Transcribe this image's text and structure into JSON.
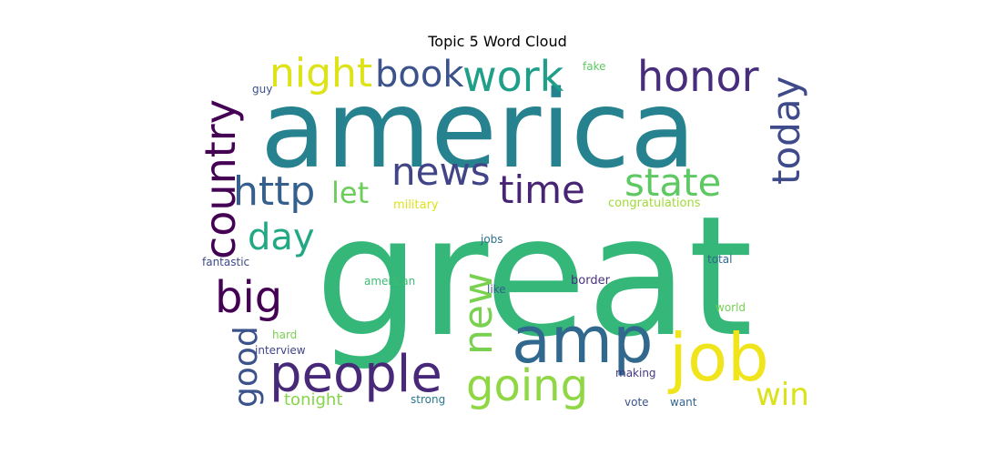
{
  "chart_data": {
    "type": "word-cloud",
    "title": "Topic 5 Word Cloud",
    "colormap": "viridis",
    "words": [
      {
        "text": "great",
        "weight": 1.0,
        "color": "#35b779",
        "orientation": "horizontal"
      },
      {
        "text": "america",
        "weight": 0.9,
        "color": "#26828e",
        "orientation": "horizontal"
      },
      {
        "text": "amp",
        "weight": 0.45,
        "color": "#31688e",
        "orientation": "horizontal"
      },
      {
        "text": "job",
        "weight": 0.4,
        "color": "#f0e51c",
        "orientation": "horizontal"
      },
      {
        "text": "people",
        "weight": 0.36,
        "color": "#482878",
        "orientation": "horizontal"
      },
      {
        "text": "country",
        "weight": 0.34,
        "color": "#440154",
        "orientation": "vertical"
      },
      {
        "text": "honor",
        "weight": 0.28,
        "color": "#472d7b",
        "orientation": "horizontal"
      },
      {
        "text": "work",
        "weight": 0.28,
        "color": "#1f9e89",
        "orientation": "horizontal"
      },
      {
        "text": "today",
        "weight": 0.27,
        "color": "#3e4a89",
        "orientation": "vertical"
      },
      {
        "text": "going",
        "weight": 0.27,
        "color": "#8fd744",
        "orientation": "horizontal"
      },
      {
        "text": "night",
        "weight": 0.26,
        "color": "#dde318",
        "orientation": "horizontal"
      },
      {
        "text": "book",
        "weight": 0.25,
        "color": "#3b528b",
        "orientation": "horizontal"
      },
      {
        "text": "news",
        "weight": 0.25,
        "color": "#414487",
        "orientation": "horizontal"
      },
      {
        "text": "state",
        "weight": 0.25,
        "color": "#5ec962",
        "orientation": "horizontal"
      },
      {
        "text": "time",
        "weight": 0.24,
        "color": "#482475",
        "orientation": "horizontal"
      },
      {
        "text": "big",
        "weight": 0.24,
        "color": "#440154",
        "orientation": "horizontal"
      },
      {
        "text": "new",
        "weight": 0.23,
        "color": "#7ad151",
        "orientation": "vertical"
      },
      {
        "text": "http",
        "weight": 0.22,
        "color": "#355f8d",
        "orientation": "horizontal"
      },
      {
        "text": "good",
        "weight": 0.21,
        "color": "#3b528b",
        "orientation": "vertical"
      },
      {
        "text": "day",
        "weight": 0.2,
        "color": "#22a884",
        "orientation": "horizontal"
      },
      {
        "text": "let",
        "weight": 0.18,
        "color": "#6ccd5a",
        "orientation": "horizontal"
      },
      {
        "text": "win",
        "weight": 0.17,
        "color": "#dae319",
        "orientation": "horizontal"
      },
      {
        "text": "tonight",
        "weight": 0.1,
        "color": "#86d549",
        "orientation": "horizontal"
      },
      {
        "text": "military",
        "weight": 0.07,
        "color": "#dde318",
        "orientation": "horizontal"
      },
      {
        "text": "congratulations",
        "weight": 0.07,
        "color": "#a0da39",
        "orientation": "horizontal"
      },
      {
        "text": "fake",
        "weight": 0.06,
        "color": "#5ec962",
        "orientation": "horizontal"
      },
      {
        "text": "guy",
        "weight": 0.06,
        "color": "#3b528b",
        "orientation": "horizontal"
      },
      {
        "text": "jobs",
        "weight": 0.06,
        "color": "#2d708e",
        "orientation": "horizontal"
      },
      {
        "text": "fantastic",
        "weight": 0.06,
        "color": "#3e4a89",
        "orientation": "horizontal"
      },
      {
        "text": "total",
        "weight": 0.06,
        "color": "#31688e",
        "orientation": "horizontal"
      },
      {
        "text": "american",
        "weight": 0.06,
        "color": "#3dbc74",
        "orientation": "horizontal"
      },
      {
        "text": "border",
        "weight": 0.06,
        "color": "#46327e",
        "orientation": "horizontal"
      },
      {
        "text": "like",
        "weight": 0.06,
        "color": "#365c8d",
        "orientation": "horizontal"
      },
      {
        "text": "world",
        "weight": 0.06,
        "color": "#75d054",
        "orientation": "horizontal"
      },
      {
        "text": "hard",
        "weight": 0.06,
        "color": "#7ad151",
        "orientation": "horizontal"
      },
      {
        "text": "interview",
        "weight": 0.06,
        "color": "#414487",
        "orientation": "horizontal"
      },
      {
        "text": "making",
        "weight": 0.06,
        "color": "#443983",
        "orientation": "horizontal"
      },
      {
        "text": "strong",
        "weight": 0.06,
        "color": "#2a788e",
        "orientation": "horizontal"
      },
      {
        "text": "vote",
        "weight": 0.06,
        "color": "#3b528b",
        "orientation": "horizontal"
      },
      {
        "text": "want",
        "weight": 0.06,
        "color": "#33638d",
        "orientation": "horizontal"
      }
    ]
  }
}
